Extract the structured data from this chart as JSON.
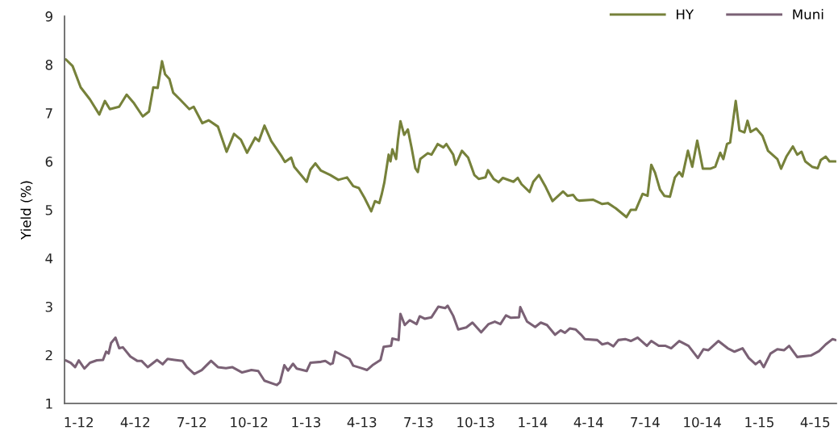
{
  "chart_data": {
    "type": "line",
    "ylabel": "Yield (%)",
    "xlim": [
      "2011-12-09",
      "2015-05-05"
    ],
    "xticks": [
      {
        "value": "2012-01-01",
        "label": "1-12"
      },
      {
        "value": "2012-04-01",
        "label": "4-12"
      },
      {
        "value": "2012-07-01",
        "label": "7-12"
      },
      {
        "value": "2012-10-01",
        "label": "10-12"
      },
      {
        "value": "2013-01-01",
        "label": "1-13"
      },
      {
        "value": "2013-04-01",
        "label": "4-13"
      },
      {
        "value": "2013-07-01",
        "label": "7-13"
      },
      {
        "value": "2013-10-01",
        "label": "10-13"
      },
      {
        "value": "2014-01-01",
        "label": "1-14"
      },
      {
        "value": "2014-04-01",
        "label": "4-14"
      },
      {
        "value": "2014-07-01",
        "label": "7-14"
      },
      {
        "value": "2014-10-01",
        "label": "10-14"
      },
      {
        "value": "2015-01-01",
        "label": "1-15"
      },
      {
        "value": "2015-04-01",
        "label": "4-15"
      }
    ],
    "ylim": [
      1,
      9
    ],
    "yticks": [
      1,
      2,
      3,
      4,
      5,
      6,
      7,
      8,
      9
    ],
    "grid": false,
    "legend": "top right",
    "marker": "none",
    "line_style": "solid",
    "series": [
      {
        "name": "HY",
        "color": "#76813a",
        "x": [
          "2011-12-11",
          "2011-12-22",
          "2012-01-04",
          "2012-01-19",
          "2012-02-03",
          "2012-02-12",
          "2012-02-20",
          "2012-03-06",
          "2012-03-18",
          "2012-03-30",
          "2012-04-13",
          "2012-04-23",
          "2012-04-30",
          "2012-05-07",
          "2012-05-14",
          "2012-05-19",
          "2012-05-26",
          "2012-06-01",
          "2012-06-12",
          "2012-06-27",
          "2012-07-04",
          "2012-07-18",
          "2012-07-28",
          "2012-08-12",
          "2012-08-26",
          "2012-09-07",
          "2012-09-18",
          "2012-09-28",
          "2012-10-11",
          "2012-10-17",
          "2012-10-26",
          "2012-11-06",
          "2012-11-22",
          "2012-11-28",
          "2012-12-08",
          "2012-12-13",
          "2013-01-02",
          "2013-01-08",
          "2013-01-16",
          "2013-01-25",
          "2013-02-09",
          "2013-02-22",
          "2013-03-08",
          "2013-03-18",
          "2013-03-27",
          "2013-04-05",
          "2013-04-16",
          "2013-04-22",
          "2013-04-29",
          "2013-05-03",
          "2013-05-07",
          "2013-05-14",
          "2013-05-17",
          "2013-05-20",
          "2013-05-26",
          "2013-05-29",
          "2013-06-02",
          "2013-06-08",
          "2013-06-14",
          "2013-06-20",
          "2013-06-26",
          "2013-06-30",
          "2013-07-04",
          "2013-07-16",
          "2013-07-22",
          "2013-08-01",
          "2013-08-10",
          "2013-08-15",
          "2013-08-26",
          "2013-08-30",
          "2013-09-09",
          "2013-09-19",
          "2013-09-29",
          "2013-10-06",
          "2013-10-17",
          "2013-10-21",
          "2013-10-30",
          "2013-11-07",
          "2013-11-14",
          "2013-12-01",
          "2013-12-08",
          "2013-12-14",
          "2013-12-27",
          "2014-01-02",
          "2014-01-11",
          "2014-01-22",
          "2014-02-02",
          "2014-02-13",
          "2014-02-19",
          "2014-02-26",
          "2014-03-07",
          "2014-03-13",
          "2014-03-17",
          "2014-04-08",
          "2014-04-23",
          "2014-05-02",
          "2014-05-15",
          "2014-06-01",
          "2014-06-08",
          "2014-06-16",
          "2014-06-27",
          "2014-07-05",
          "2014-07-11",
          "2014-07-17",
          "2014-07-25",
          "2014-08-01",
          "2014-08-10",
          "2014-08-18",
          "2014-08-25",
          "2014-08-30",
          "2014-09-08",
          "2014-09-15",
          "2014-09-23",
          "2014-10-02",
          "2014-10-14",
          "2014-10-22",
          "2014-10-30",
          "2014-11-04",
          "2014-11-10",
          "2014-11-15",
          "2014-11-24",
          "2014-11-30",
          "2014-12-08",
          "2014-12-13",
          "2014-12-18",
          "2014-12-27",
          "2015-01-06",
          "2015-01-15",
          "2015-01-30",
          "2015-02-05",
          "2015-02-14",
          "2015-02-24",
          "2015-03-03",
          "2015-03-10",
          "2015-03-16",
          "2015-03-27",
          "2015-04-05",
          "2015-04-10",
          "2015-04-18",
          "2015-04-24",
          "2015-05-04"
        ],
        "values": [
          8.11,
          7.97,
          7.53,
          7.28,
          6.97,
          7.25,
          7.08,
          7.13,
          7.38,
          7.2,
          6.93,
          7.03,
          7.53,
          7.52,
          8.07,
          7.8,
          7.7,
          7.42,
          7.28,
          7.08,
          7.13,
          6.79,
          6.85,
          6.72,
          6.2,
          6.57,
          6.45,
          6.18,
          6.49,
          6.42,
          6.74,
          6.42,
          6.12,
          5.99,
          6.08,
          5.89,
          5.58,
          5.83,
          5.96,
          5.81,
          5.72,
          5.62,
          5.67,
          5.49,
          5.45,
          5.25,
          4.97,
          5.18,
          5.14,
          5.33,
          5.56,
          6.14,
          6.0,
          6.25,
          6.05,
          6.44,
          6.83,
          6.55,
          6.66,
          6.28,
          5.86,
          5.78,
          6.05,
          6.17,
          6.14,
          6.36,
          6.29,
          6.36,
          6.14,
          5.93,
          6.22,
          6.08,
          5.72,
          5.64,
          5.67,
          5.82,
          5.64,
          5.57,
          5.66,
          5.58,
          5.66,
          5.53,
          5.37,
          5.58,
          5.72,
          5.47,
          5.18,
          5.31,
          5.38,
          5.29,
          5.31,
          5.21,
          5.19,
          5.21,
          5.12,
          5.14,
          5.03,
          4.85,
          5.0,
          5.0,
          5.33,
          5.29,
          5.93,
          5.77,
          5.42,
          5.29,
          5.27,
          5.67,
          5.78,
          5.69,
          6.22,
          5.89,
          6.43,
          5.85,
          5.85,
          5.89,
          6.18,
          6.05,
          6.36,
          6.39,
          7.25,
          6.64,
          6.6,
          6.84,
          6.61,
          6.68,
          6.53,
          6.22,
          6.05,
          5.85,
          6.11,
          6.31,
          6.14,
          6.2,
          6.0,
          5.89,
          5.86,
          6.03,
          6.1,
          6.0,
          6.0
        ]
      },
      {
        "name": "Muni",
        "color": "#7a6175",
        "x": [
          "2011-12-11",
          "2011-12-19",
          "2011-12-26",
          "2012-01-01",
          "2012-01-10",
          "2012-01-19",
          "2012-01-30",
          "2012-02-09",
          "2012-02-14",
          "2012-02-18",
          "2012-02-22",
          "2012-02-29",
          "2012-03-06",
          "2012-03-12",
          "2012-03-24",
          "2012-04-04",
          "2012-04-11",
          "2012-04-21",
          "2012-05-06",
          "2012-05-15",
          "2012-05-23",
          "2012-06-03",
          "2012-06-16",
          "2012-06-23",
          "2012-07-05",
          "2012-07-17",
          "2012-08-01",
          "2012-08-12",
          "2012-08-25",
          "2012-09-04",
          "2012-09-20",
          "2012-10-05",
          "2012-10-16",
          "2012-10-26",
          "2012-11-15",
          "2012-11-20",
          "2012-11-27",
          "2012-12-03",
          "2012-12-11",
          "2012-12-17",
          "2013-01-02",
          "2013-01-08",
          "2013-01-25",
          "2013-02-01",
          "2013-02-09",
          "2013-02-13",
          "2013-02-17",
          "2013-03-12",
          "2013-03-18",
          "2013-03-31",
          "2013-04-09",
          "2013-04-18",
          "2013-05-01",
          "2013-05-06",
          "2013-05-18",
          "2013-05-20",
          "2013-05-30",
          "2013-06-02",
          "2013-06-09",
          "2013-06-17",
          "2013-06-28",
          "2013-07-03",
          "2013-07-11",
          "2013-07-22",
          "2013-08-02",
          "2013-08-13",
          "2013-08-17",
          "2013-08-26",
          "2013-09-03",
          "2013-09-16",
          "2013-09-26",
          "2013-10-10",
          "2013-10-22",
          "2013-11-01",
          "2013-11-10",
          "2013-11-19",
          "2013-11-27",
          "2013-12-10",
          "2013-12-12",
          "2013-12-23",
          "2014-01-05",
          "2014-01-14",
          "2014-01-24",
          "2014-02-06",
          "2014-02-15",
          "2014-02-22",
          "2014-03-02",
          "2014-03-11",
          "2014-03-20",
          "2014-03-26",
          "2014-04-15",
          "2014-04-23",
          "2014-05-02",
          "2014-05-11",
          "2014-05-19",
          "2014-05-30",
          "2014-06-08",
          "2014-06-19",
          "2014-07-04",
          "2014-07-11",
          "2014-07-23",
          "2014-08-03",
          "2014-08-12",
          "2014-08-25",
          "2014-09-09",
          "2014-09-24",
          "2014-10-03",
          "2014-10-11",
          "2014-10-27",
          "2014-11-11",
          "2014-11-22",
          "2014-12-05",
          "2014-12-15",
          "2014-12-26",
          "2015-01-02",
          "2015-01-08",
          "2015-01-19",
          "2015-01-30",
          "2015-02-10",
          "2015-02-18",
          "2015-03-03",
          "2015-03-25",
          "2015-04-07",
          "2015-04-18",
          "2015-04-29",
          "2015-05-04"
        ],
        "values": [
          1.89,
          1.84,
          1.75,
          1.89,
          1.72,
          1.84,
          1.89,
          1.9,
          2.07,
          2.03,
          2.25,
          2.36,
          2.14,
          2.16,
          1.97,
          1.88,
          1.88,
          1.75,
          1.9,
          1.81,
          1.92,
          1.9,
          1.88,
          1.75,
          1.61,
          1.69,
          1.88,
          1.75,
          1.73,
          1.75,
          1.64,
          1.69,
          1.67,
          1.47,
          1.38,
          1.44,
          1.79,
          1.68,
          1.82,
          1.72,
          1.67,
          1.84,
          1.86,
          1.88,
          1.81,
          1.83,
          2.07,
          1.92,
          1.78,
          1.73,
          1.69,
          1.79,
          1.9,
          2.17,
          2.19,
          2.34,
          2.31,
          2.85,
          2.62,
          2.72,
          2.64,
          2.8,
          2.75,
          2.78,
          3.0,
          2.97,
          3.02,
          2.81,
          2.53,
          2.57,
          2.67,
          2.47,
          2.64,
          2.69,
          2.64,
          2.82,
          2.77,
          2.78,
          2.99,
          2.69,
          2.58,
          2.67,
          2.62,
          2.42,
          2.51,
          2.46,
          2.55,
          2.53,
          2.42,
          2.33,
          2.31,
          2.22,
          2.25,
          2.18,
          2.31,
          2.33,
          2.29,
          2.36,
          2.19,
          2.29,
          2.19,
          2.19,
          2.14,
          2.29,
          2.19,
          1.94,
          2.12,
          2.1,
          2.29,
          2.14,
          2.07,
          2.14,
          1.94,
          1.81,
          1.88,
          1.75,
          2.03,
          2.12,
          2.1,
          2.19,
          1.96,
          1.99,
          2.08,
          2.22,
          2.33,
          2.31
        ]
      }
    ]
  }
}
